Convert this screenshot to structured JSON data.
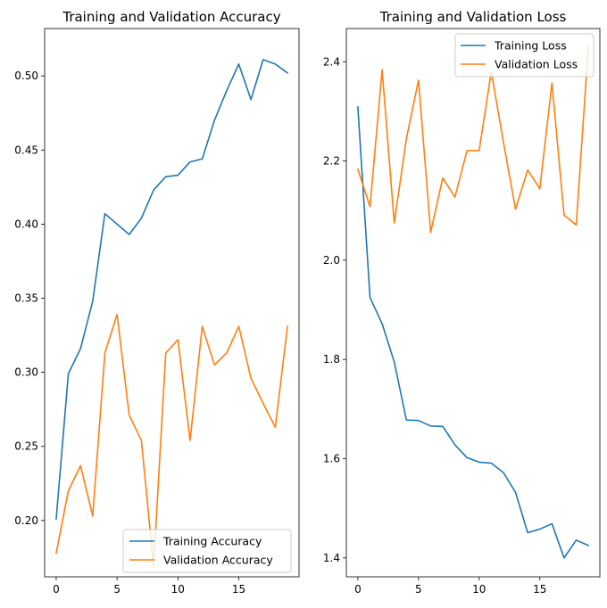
{
  "chart_data": [
    {
      "type": "line",
      "title": "Training and Validation Accuracy",
      "xlabel": "",
      "ylabel": "",
      "xlim": [
        -0.95,
        19.95
      ],
      "ylim": [
        0.162,
        0.532
      ],
      "xticks": [
        0,
        5,
        10,
        15
      ],
      "yticks": [
        0.2,
        0.25,
        0.3,
        0.35,
        0.4,
        0.45,
        0.5
      ],
      "ytick_labels": [
        "0.20",
        "0.25",
        "0.30",
        "0.35",
        "0.40",
        "0.45",
        "0.50"
      ],
      "legend_position": "lower right",
      "grid": false,
      "x": [
        0,
        1,
        2,
        3,
        4,
        5,
        6,
        7,
        8,
        9,
        10,
        11,
        12,
        13,
        14,
        15,
        16,
        17,
        18,
        19
      ],
      "series": [
        {
          "name": "Training Accuracy",
          "color": "#1f77b4",
          "values": [
            0.201,
            0.299,
            0.316,
            0.348,
            0.407,
            0.4,
            0.393,
            0.404,
            0.423,
            0.432,
            0.433,
            0.442,
            0.444,
            0.47,
            0.49,
            0.508,
            0.484,
            0.511,
            0.508,
            0.502
          ]
        },
        {
          "name": "Validation Accuracy",
          "color": "#ff7f0e",
          "values": [
            0.178,
            0.22,
            0.237,
            0.203,
            0.313,
            0.339,
            0.271,
            0.254,
            0.169,
            0.313,
            0.322,
            0.254,
            0.331,
            0.305,
            0.313,
            0.331,
            0.296,
            0.279,
            0.263,
            0.331
          ]
        }
      ]
    },
    {
      "type": "line",
      "title": "Training and Validation Loss",
      "xlabel": "",
      "ylabel": "",
      "xlim": [
        -0.95,
        19.95
      ],
      "ylim": [
        1.362,
        2.467
      ],
      "xticks": [
        0,
        5,
        10,
        15
      ],
      "yticks": [
        1.4,
        1.6,
        1.8,
        2.0,
        2.2,
        2.4
      ],
      "ytick_labels": [
        "1.4",
        "1.6",
        "1.8",
        "2.0",
        "2.2",
        "2.4"
      ],
      "legend_position": "upper right",
      "grid": false,
      "x": [
        0,
        1,
        2,
        3,
        4,
        5,
        6,
        7,
        8,
        9,
        10,
        11,
        12,
        13,
        14,
        15,
        16,
        17,
        18,
        19
      ],
      "series": [
        {
          "name": "Training Loss",
          "color": "#1f77b4",
          "values": [
            2.309,
            1.925,
            1.872,
            1.795,
            1.678,
            1.677,
            1.666,
            1.665,
            1.628,
            1.602,
            1.593,
            1.591,
            1.572,
            1.532,
            1.451,
            1.458,
            1.469,
            1.4,
            1.436,
            1.425
          ]
        },
        {
          "name": "Validation Loss",
          "color": "#ff7f0e",
          "values": [
            2.183,
            2.108,
            2.384,
            2.075,
            2.245,
            2.363,
            2.056,
            2.166,
            2.127,
            2.221,
            2.221,
            2.38,
            2.238,
            2.103,
            2.182,
            2.144,
            2.357,
            2.091,
            2.071,
            2.43
          ]
        }
      ]
    }
  ]
}
